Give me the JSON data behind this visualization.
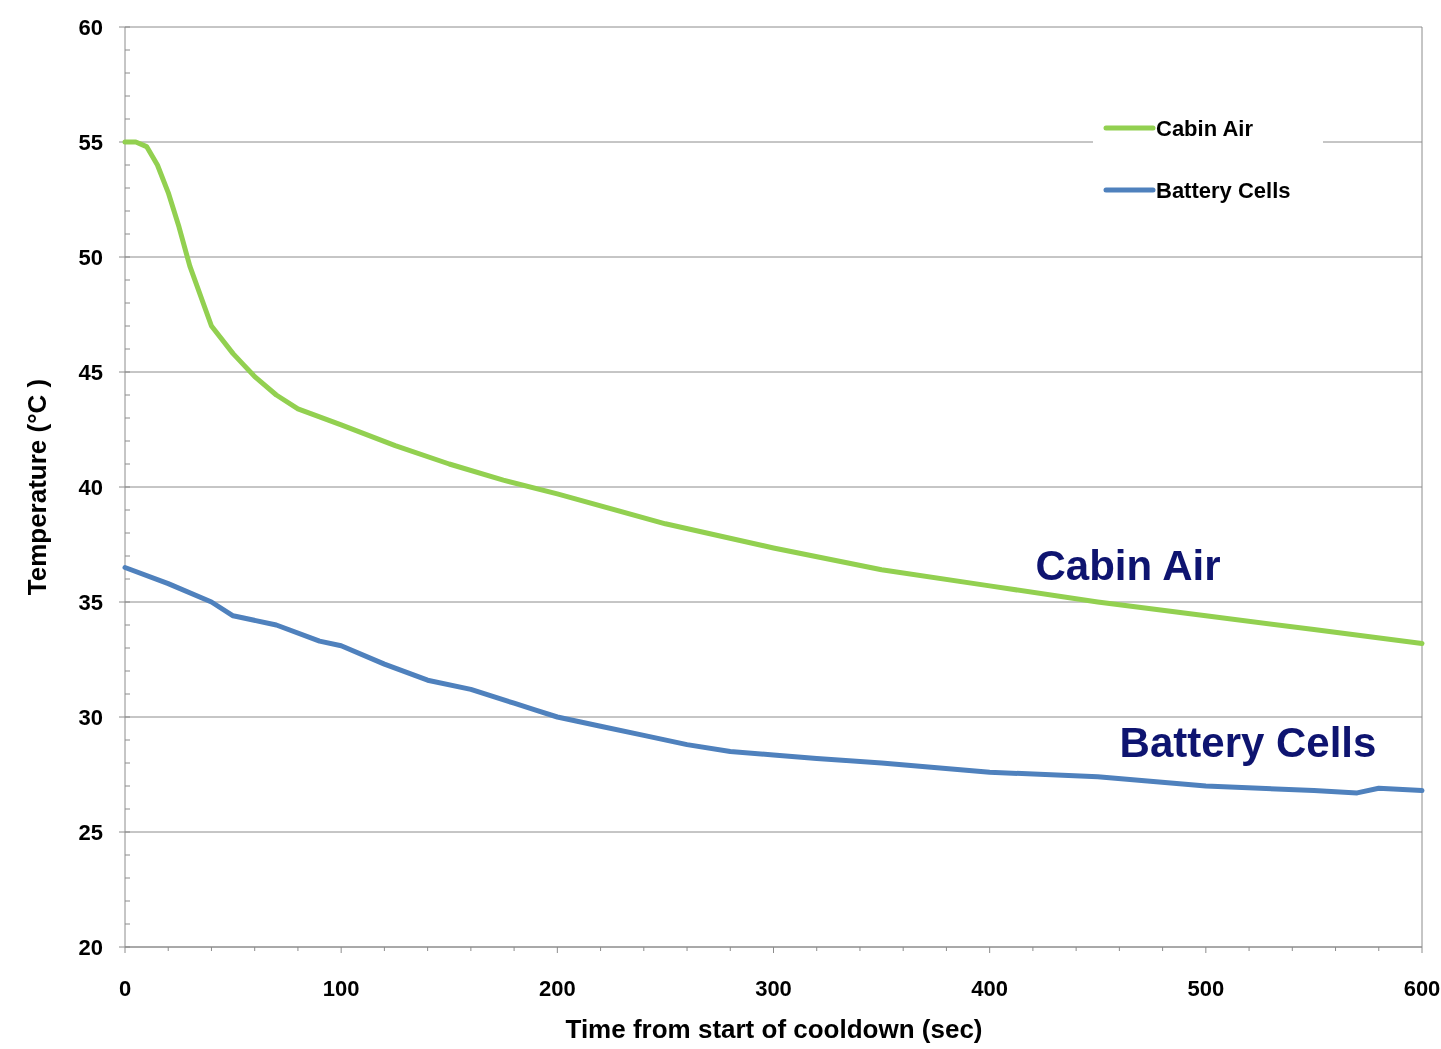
{
  "chart_data": {
    "type": "line",
    "xlabel": "Time from start of cooldown (sec)",
    "ylabel": "Temperature (°C )",
    "xlim": [
      0,
      600
    ],
    "ylim": [
      20,
      60
    ],
    "xticks": [
      0,
      {
        "value": 20,
        "label": null
      },
      {
        "value": 40,
        "label": null
      },
      {
        "value": 60,
        "label": null
      },
      {
        "value": 80,
        "label": null
      },
      100,
      {
        "value": 120,
        "label": null
      },
      {
        "value": 140,
        "label": null
      },
      {
        "value": 160,
        "label": null
      },
      {
        "value": 180,
        "label": null
      },
      200,
      {
        "value": 220,
        "label": null
      },
      {
        "value": 240,
        "label": null
      },
      {
        "value": 260,
        "label": null
      },
      {
        "value": 280,
        "label": null
      },
      300,
      {
        "value": 320,
        "label": null
      },
      {
        "value": 340,
        "label": null
      },
      {
        "value": 360,
        "label": null
      },
      {
        "value": 380,
        "label": null
      },
      400,
      {
        "value": 420,
        "label": null
      },
      {
        "value": 440,
        "label": null
      },
      {
        "value": 460,
        "label": null
      },
      {
        "value": 480,
        "label": null
      },
      500,
      {
        "value": 520,
        "label": null
      },
      {
        "value": 540,
        "label": null
      },
      {
        "value": 560,
        "label": null
      },
      {
        "value": 580,
        "label": null
      },
      600
    ],
    "yticks": [
      20,
      25,
      30,
      35,
      40,
      45,
      50,
      55,
      60
    ],
    "grid": "y",
    "legend": "top right",
    "line_style": "solid",
    "series": [
      {
        "name": "Cabin Air",
        "color": "#92d050",
        "x": [
          0,
          5,
          10,
          15,
          20,
          25,
          30,
          40,
          50,
          55,
          60,
          70,
          80,
          100,
          125,
          150,
          175,
          200,
          250,
          300,
          350,
          400,
          450,
          500,
          550,
          600
        ],
        "values": [
          55,
          55,
          54.8,
          54,
          52.8,
          51.3,
          49.6,
          47,
          45.8,
          45.3,
          44.8,
          44,
          43.4,
          42.7,
          41.8,
          41,
          40.3,
          39.7,
          38.4,
          37.35,
          36.4,
          35.7,
          35,
          34.4,
          33.8,
          33.2
        ]
      },
      {
        "name": "Battery Cells",
        "color": "#4f81bd",
        "x": [
          0,
          20,
          40,
          50,
          70,
          90,
          100,
          120,
          140,
          160,
          180,
          190,
          200,
          220,
          240,
          260,
          280,
          300,
          320,
          350,
          400,
          450,
          500,
          550,
          570,
          580,
          600
        ],
        "values": [
          36.5,
          35.8,
          35,
          34.4,
          34,
          33.3,
          33.1,
          32.3,
          31.6,
          31.2,
          30.6,
          30.3,
          30,
          29.6,
          29.2,
          28.8,
          28.5,
          28.35,
          28.2,
          28,
          27.6,
          27.4,
          27,
          26.8,
          26.7,
          26.9,
          26.8
        ]
      }
    ],
    "annotations": [
      "Cabin Air",
      "Battery Cells"
    ]
  }
}
